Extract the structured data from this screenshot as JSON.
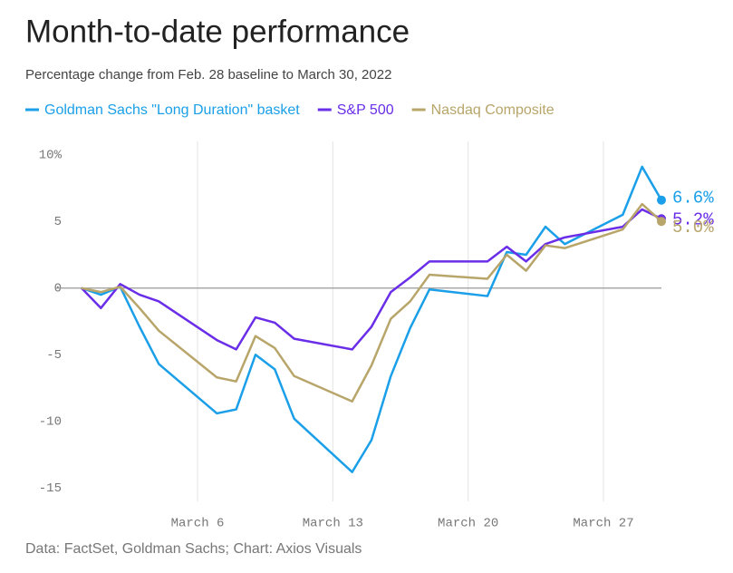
{
  "chart_data": {
    "type": "line",
    "title": "Month-to-date performance",
    "subtitle": "Percentage change from Feb. 28 baseline to March 30, 2022",
    "source": "Data: FactSet, Goldman Sachs; Chart: Axios Visuals",
    "x": [
      "02-28",
      "03-01",
      "03-02",
      "03-03",
      "03-04",
      "03-07",
      "03-08",
      "03-09",
      "03-10",
      "03-11",
      "03-14",
      "03-15",
      "03-16",
      "03-17",
      "03-18",
      "03-21",
      "03-22",
      "03-23",
      "03-24",
      "03-25",
      "03-28",
      "03-29",
      "03-30"
    ],
    "xlim": [
      "02-28",
      "03-30"
    ],
    "xticks": [
      {
        "value": "03-06",
        "label": "March 6"
      },
      {
        "value": "03-13",
        "label": "March 13"
      },
      {
        "value": "03-20",
        "label": "March 20"
      },
      {
        "value": "03-27",
        "label": "March 27"
      }
    ],
    "ylim": [
      -16,
      11
    ],
    "yticks": [
      {
        "value": 10,
        "label": "10%"
      },
      5,
      0,
      -5,
      -10,
      -15
    ],
    "grid": "x",
    "legend": "top",
    "series": [
      {
        "name": "Goldman Sachs \"Long Duration\" basket",
        "color": "#1a9fe8",
        "values": [
          0,
          -0.5,
          0.1,
          -2.9,
          -5.7,
          -9.4,
          -9.1,
          -5.0,
          -6.1,
          -9.8,
          -13.8,
          -11.4,
          -6.6,
          -3.0,
          -0.1,
          -0.6,
          2.7,
          2.5,
          4.6,
          3.3,
          5.5,
          9.1,
          6.6
        ],
        "value_labels": [
          null,
          null,
          null,
          null,
          null,
          null,
          null,
          null,
          null,
          null,
          null,
          null,
          null,
          null,
          null,
          null,
          null,
          null,
          null,
          null,
          null,
          null,
          "6.6%"
        ]
      },
      {
        "name": "S&P 500",
        "color": "#6a2ee8",
        "values": [
          0,
          -1.5,
          0.3,
          -0.5,
          -1.0,
          -3.9,
          -4.6,
          -2.2,
          -2.6,
          -3.8,
          -4.6,
          -2.9,
          -0.3,
          0.8,
          2.0,
          2.0,
          3.1,
          2.0,
          3.3,
          3.8,
          4.6,
          5.9,
          5.2
        ],
        "value_labels": [
          null,
          null,
          null,
          null,
          null,
          null,
          null,
          null,
          null,
          null,
          null,
          null,
          null,
          null,
          null,
          null,
          null,
          null,
          null,
          null,
          null,
          null,
          "5.2%"
        ]
      },
      {
        "name": "Nasdaq Composite",
        "color": "#b8a56a",
        "values": [
          0,
          -0.3,
          0.1,
          -1.5,
          -3.2,
          -6.7,
          -7.0,
          -3.6,
          -4.5,
          -6.6,
          -8.5,
          -5.8,
          -2.3,
          -1.0,
          1.0,
          0.7,
          2.5,
          1.3,
          3.2,
          3.0,
          4.4,
          6.3,
          5.0
        ],
        "value_labels": [
          null,
          null,
          null,
          null,
          null,
          null,
          null,
          null,
          null,
          null,
          null,
          null,
          null,
          null,
          null,
          null,
          null,
          null,
          null,
          null,
          null,
          null,
          "5.0%"
        ]
      }
    ]
  }
}
